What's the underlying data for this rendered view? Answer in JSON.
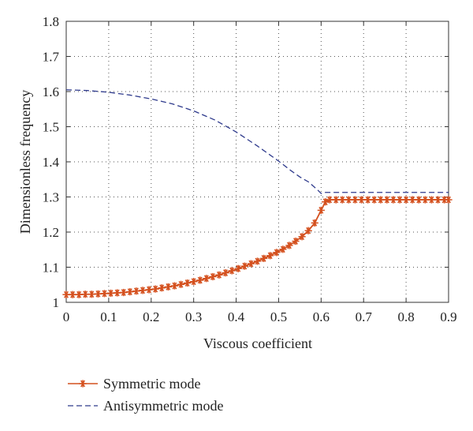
{
  "chart_data": {
    "type": "line",
    "title": "",
    "xlabel": "Viscous coefficient",
    "ylabel": "Dimensionless frequency",
    "xlim": [
      0,
      0.9
    ],
    "ylim": [
      1,
      1.8
    ],
    "xticks": [
      "0",
      "0.1",
      "0.2",
      "0.3",
      "0.4",
      "0.5",
      "0.6",
      "0.7",
      "0.8",
      "0.9"
    ],
    "yticks": [
      "1",
      "1.1",
      "1.2",
      "1.3",
      "1.4",
      "1.5",
      "1.6",
      "1.7",
      "1.8"
    ],
    "grid": true,
    "legend_position": "bottom-left",
    "series": [
      {
        "name": "Symmetric mode",
        "color": "#d4501e",
        "style": "solid-asterisk",
        "x": [
          0,
          0.015,
          0.03,
          0.045,
          0.06,
          0.075,
          0.09,
          0.105,
          0.12,
          0.135,
          0.15,
          0.165,
          0.18,
          0.195,
          0.21,
          0.225,
          0.24,
          0.255,
          0.27,
          0.285,
          0.3,
          0.315,
          0.33,
          0.345,
          0.36,
          0.375,
          0.39,
          0.405,
          0.42,
          0.435,
          0.45,
          0.465,
          0.48,
          0.495,
          0.51,
          0.525,
          0.54,
          0.555,
          0.57,
          0.585,
          0.6,
          0.61,
          0.62,
          0.635,
          0.65,
          0.665,
          0.68,
          0.695,
          0.71,
          0.725,
          0.74,
          0.755,
          0.77,
          0.785,
          0.8,
          0.815,
          0.83,
          0.845,
          0.86,
          0.875,
          0.89,
          0.9
        ],
        "y": [
          1.022,
          1.022,
          1.022,
          1.023,
          1.023,
          1.024,
          1.025,
          1.026,
          1.027,
          1.028,
          1.03,
          1.032,
          1.034,
          1.036,
          1.038,
          1.041,
          1.044,
          1.047,
          1.051,
          1.055,
          1.059,
          1.063,
          1.068,
          1.073,
          1.078,
          1.084,
          1.09,
          1.096,
          1.103,
          1.11,
          1.117,
          1.125,
          1.133,
          1.142,
          1.151,
          1.162,
          1.174,
          1.187,
          1.204,
          1.226,
          1.262,
          1.286,
          1.292,
          1.292,
          1.292,
          1.292,
          1.292,
          1.292,
          1.292,
          1.292,
          1.292,
          1.292,
          1.292,
          1.292,
          1.292,
          1.292,
          1.292,
          1.292,
          1.292,
          1.292,
          1.292,
          1.292
        ]
      },
      {
        "name": "Antisymmetric mode",
        "color": "#2e3a8c",
        "style": "dashed",
        "x": [
          0,
          0.05,
          0.1,
          0.15,
          0.2,
          0.25,
          0.3,
          0.35,
          0.4,
          0.45,
          0.5,
          0.53,
          0.55,
          0.57,
          0.59,
          0.6,
          0.61,
          0.62,
          0.7,
          0.8,
          0.9
        ],
        "y": [
          1.605,
          1.603,
          1.598,
          1.59,
          1.579,
          1.565,
          1.545,
          1.519,
          1.485,
          1.445,
          1.402,
          1.374,
          1.357,
          1.343,
          1.322,
          1.31,
          1.313,
          1.313,
          1.313,
          1.313,
          1.313
        ]
      }
    ]
  }
}
